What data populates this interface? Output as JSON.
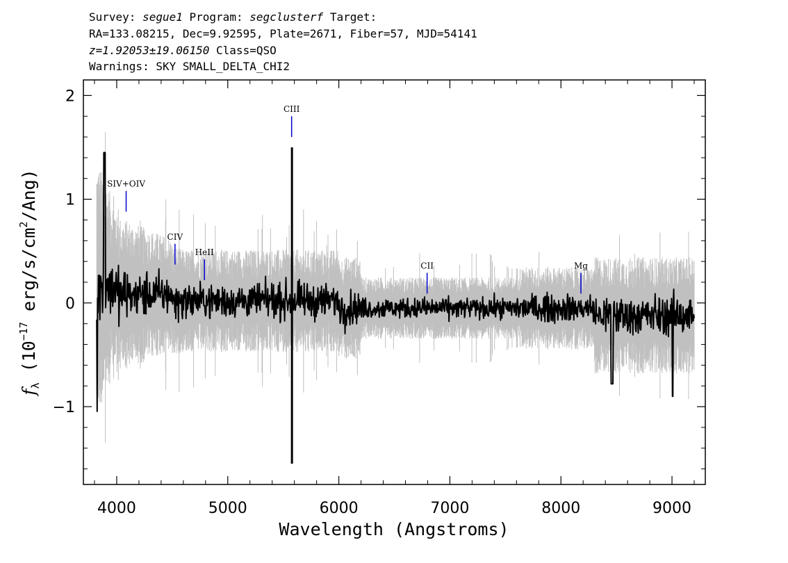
{
  "header": {
    "survey_label": "Survey:",
    "survey": "segue1",
    "program_label": "Program:",
    "program": "segclusterf",
    "target_label": "Target:",
    "line2": "RA=133.08215, Dec=9.92595, Plate=2671, Fiber=57, MJD=54141",
    "redshift": "z=1.92053±19.06150",
    "class_text": "Class=QSO",
    "warnings": "Warnings: SKY SMALL_DELTA_CHI2"
  },
  "chart_data": {
    "type": "line",
    "xlabel": "Wavelength (Angstroms)",
    "ylabel_prefix": "f",
    "ylabel_sub": "λ",
    "ylabel_open": " (10",
    "ylabel_exp": "−17",
    "ylabel_mid": " erg/s/cm",
    "ylabel_exp2": "2",
    "ylabel_end": "/Ang)",
    "xlim": [
      3700,
      9300
    ],
    "ylim": [
      -1.75,
      2.15
    ],
    "x_ticks": [
      4000,
      5000,
      6000,
      7000,
      8000,
      9000
    ],
    "x_tick_labels": [
      "4000",
      "5000",
      "6000",
      "7000",
      "8000",
      "9000"
    ],
    "y_ticks": [
      -1,
      0,
      1,
      2
    ],
    "y_tick_labels": [
      "−1",
      "0",
      "1",
      "2"
    ],
    "grid": false,
    "series": [
      {
        "role": "flux",
        "color": "#000000",
        "x_range": [
          3820,
          9200
        ],
        "sky_spike": {
          "x": 5578,
          "ymin": -1.55,
          "ymax": 1.5
        }
      },
      {
        "role": "noise",
        "color": "#c0c0c0"
      }
    ],
    "emission_lines": [
      {
        "label": "SIV+OIV",
        "x": 4085,
        "y_top": 1.08,
        "y_bottom": 0.88
      },
      {
        "label": "CIV",
        "x": 4525,
        "y_top": 0.57,
        "y_bottom": 0.37
      },
      {
        "label": "HeII",
        "x": 4790,
        "y_top": 0.42,
        "y_bottom": 0.22
      },
      {
        "label": "CIII",
        "x": 5575,
        "y_top": 1.8,
        "y_bottom": 1.6
      },
      {
        "label": "CII",
        "x": 6795,
        "y_top": 0.29,
        "y_bottom": 0.09
      },
      {
        "label": "Mg",
        "x": 8180,
        "y_top": 0.29,
        "y_bottom": 0.09
      }
    ],
    "line_marker_color": "#0000cc"
  }
}
